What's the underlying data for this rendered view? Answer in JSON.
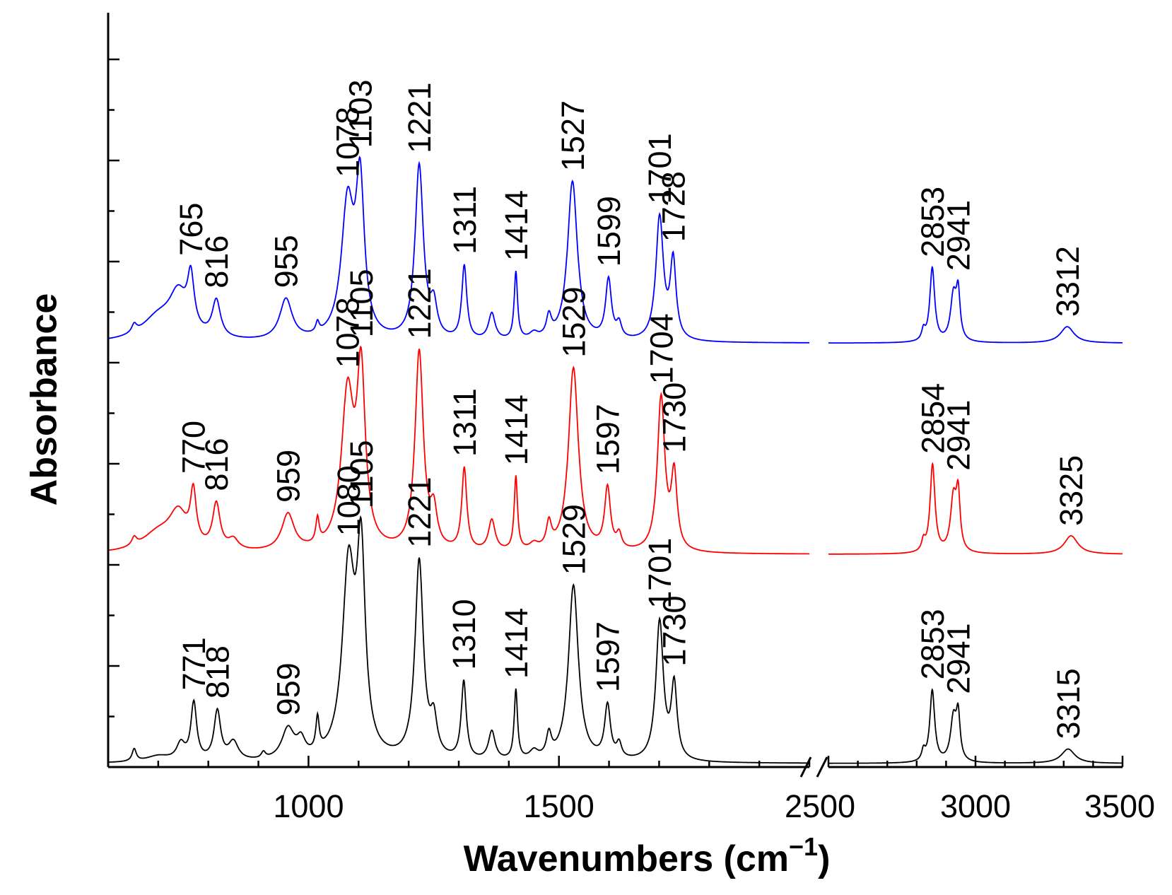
{
  "chart_data": {
    "type": "line",
    "title": "",
    "xlabel": "Wavenumbers (cm",
    "xlabel_sup": "−1",
    "xlabel_close": ")",
    "ylabel": "Absorbance",
    "x_segments": [
      {
        "range": [
          600,
          2000
        ],
        "ticks": [
          1000,
          1500
        ]
      },
      {
        "range": [
          2500,
          3500
        ],
        "ticks": [
          2500,
          3000,
          3500
        ]
      }
    ],
    "axis_break_marks": "//",
    "grid": false,
    "series": [
      {
        "color": "#0000ff",
        "offset": 2.05,
        "peaks": [
          {
            "x": 652,
            "h": 0.04,
            "w": 6
          },
          {
            "x": 700,
            "h": 0.11,
            "w": 40
          },
          {
            "x": 740,
            "h": 0.2,
            "w": 22
          },
          {
            "x": 765,
            "h": 0.25,
            "w": 8
          },
          {
            "x": 816,
            "h": 0.18,
            "w": 10
          },
          {
            "x": 955,
            "h": 0.2,
            "w": 15
          },
          {
            "x": 1018,
            "h": 0.05,
            "w": 4
          },
          {
            "x": 1078,
            "h": 0.65,
            "w": 15
          },
          {
            "x": 1103,
            "h": 0.72,
            "w": 10
          },
          {
            "x": 1221,
            "h": 0.85,
            "w": 10
          },
          {
            "x": 1250,
            "h": 0.15,
            "w": 8
          },
          {
            "x": 1311,
            "h": 0.36,
            "w": 6
          },
          {
            "x": 1366,
            "h": 0.13,
            "w": 8
          },
          {
            "x": 1414,
            "h": 0.33,
            "w": 4
          },
          {
            "x": 1450,
            "h": 0.03,
            "w": 10
          },
          {
            "x": 1480,
            "h": 0.1,
            "w": 6
          },
          {
            "x": 1527,
            "h": 0.78,
            "w": 12
          },
          {
            "x": 1599,
            "h": 0.29,
            "w": 7
          },
          {
            "x": 1620,
            "h": 0.07,
            "w": 6
          },
          {
            "x": 1701,
            "h": 0.6,
            "w": 9
          },
          {
            "x": 1728,
            "h": 0.38,
            "w": 7
          },
          {
            "x": 2823,
            "h": 0.05,
            "w": 7
          },
          {
            "x": 2853,
            "h": 0.36,
            "w": 10
          },
          {
            "x": 2925,
            "h": 0.22,
            "w": 12
          },
          {
            "x": 2941,
            "h": 0.22,
            "w": 8
          },
          {
            "x": 3312,
            "h": 0.08,
            "w": 28
          }
        ],
        "labels": [
          {
            "text": "765",
            "x": 765
          },
          {
            "text": "816",
            "x": 816
          },
          {
            "text": "955",
            "x": 955
          },
          {
            "text": "1078",
            "x": 1078
          },
          {
            "text": "1103",
            "x": 1103
          },
          {
            "text": "1221",
            "x": 1221
          },
          {
            "text": "1311",
            "x": 1311
          },
          {
            "text": "1414",
            "x": 1414
          },
          {
            "text": "1527",
            "x": 1527
          },
          {
            "text": "1599",
            "x": 1599
          },
          {
            "text": "1701",
            "x": 1701
          },
          {
            "text": "1728",
            "x": 1728
          },
          {
            "text": "2853",
            "x": 2853
          },
          {
            "text": "2941",
            "x": 2941
          },
          {
            "text": "3312",
            "x": 3312
          }
        ]
      },
      {
        "color": "#ff0000",
        "offset": 1.02,
        "peaks": [
          {
            "x": 652,
            "h": 0.04,
            "w": 6
          },
          {
            "x": 700,
            "h": 0.09,
            "w": 40
          },
          {
            "x": 740,
            "h": 0.17,
            "w": 22
          },
          {
            "x": 770,
            "h": 0.25,
            "w": 7
          },
          {
            "x": 816,
            "h": 0.22,
            "w": 9
          },
          {
            "x": 850,
            "h": 0.05,
            "w": 12
          },
          {
            "x": 959,
            "h": 0.18,
            "w": 15
          },
          {
            "x": 1018,
            "h": 0.12,
            "w": 4
          },
          {
            "x": 1078,
            "h": 0.75,
            "w": 15
          },
          {
            "x": 1105,
            "h": 0.82,
            "w": 10
          },
          {
            "x": 1221,
            "h": 0.97,
            "w": 10
          },
          {
            "x": 1250,
            "h": 0.17,
            "w": 8
          },
          {
            "x": 1311,
            "h": 0.4,
            "w": 6
          },
          {
            "x": 1366,
            "h": 0.15,
            "w": 8
          },
          {
            "x": 1414,
            "h": 0.36,
            "w": 4
          },
          {
            "x": 1450,
            "h": 0.03,
            "w": 10
          },
          {
            "x": 1480,
            "h": 0.12,
            "w": 6
          },
          {
            "x": 1529,
            "h": 0.9,
            "w": 12
          },
          {
            "x": 1597,
            "h": 0.3,
            "w": 7
          },
          {
            "x": 1620,
            "h": 0.07,
            "w": 6
          },
          {
            "x": 1704,
            "h": 0.75,
            "w": 9
          },
          {
            "x": 1730,
            "h": 0.36,
            "w": 7
          },
          {
            "x": 2823,
            "h": 0.05,
            "w": 7
          },
          {
            "x": 2854,
            "h": 0.43,
            "w": 10
          },
          {
            "x": 2925,
            "h": 0.26,
            "w": 12
          },
          {
            "x": 2941,
            "h": 0.26,
            "w": 8
          },
          {
            "x": 3325,
            "h": 0.09,
            "w": 28
          }
        ],
        "labels": [
          {
            "text": "770",
            "x": 770
          },
          {
            "text": "816",
            "x": 816
          },
          {
            "text": "959",
            "x": 959
          },
          {
            "text": "1078",
            "x": 1078
          },
          {
            "text": "1105",
            "x": 1105
          },
          {
            "text": "1221",
            "x": 1221
          },
          {
            "text": "1311",
            "x": 1311
          },
          {
            "text": "1414",
            "x": 1414
          },
          {
            "text": "1529",
            "x": 1529
          },
          {
            "text": "1597",
            "x": 1597
          },
          {
            "text": "1704",
            "x": 1704
          },
          {
            "text": "1730",
            "x": 1730
          },
          {
            "text": "2854",
            "x": 2854
          },
          {
            "text": "2941",
            "x": 2941
          },
          {
            "text": "3325",
            "x": 3325
          }
        ]
      },
      {
        "color": "#000000",
        "offset": 0.0,
        "peaks": [
          {
            "x": 652,
            "h": 0.06,
            "w": 5
          },
          {
            "x": 700,
            "h": 0.03,
            "w": 30
          },
          {
            "x": 745,
            "h": 0.08,
            "w": 10
          },
          {
            "x": 771,
            "h": 0.28,
            "w": 7
          },
          {
            "x": 818,
            "h": 0.24,
            "w": 8
          },
          {
            "x": 850,
            "h": 0.09,
            "w": 12
          },
          {
            "x": 910,
            "h": 0.03,
            "w": 5
          },
          {
            "x": 959,
            "h": 0.15,
            "w": 15
          },
          {
            "x": 985,
            "h": 0.08,
            "w": 10
          },
          {
            "x": 1018,
            "h": 0.16,
            "w": 4
          },
          {
            "x": 1080,
            "h": 0.92,
            "w": 15
          },
          {
            "x": 1105,
            "h": 0.94,
            "w": 10
          },
          {
            "x": 1221,
            "h": 0.97,
            "w": 10
          },
          {
            "x": 1250,
            "h": 0.17,
            "w": 8
          },
          {
            "x": 1310,
            "h": 0.38,
            "w": 6
          },
          {
            "x": 1366,
            "h": 0.14,
            "w": 8
          },
          {
            "x": 1414,
            "h": 0.34,
            "w": 4
          },
          {
            "x": 1450,
            "h": 0.04,
            "w": 10
          },
          {
            "x": 1480,
            "h": 0.11,
            "w": 6
          },
          {
            "x": 1529,
            "h": 0.86,
            "w": 12
          },
          {
            "x": 1597,
            "h": 0.26,
            "w": 7
          },
          {
            "x": 1620,
            "h": 0.07,
            "w": 6
          },
          {
            "x": 1701,
            "h": 0.68,
            "w": 9
          },
          {
            "x": 1730,
            "h": 0.36,
            "w": 7
          },
          {
            "x": 2823,
            "h": 0.05,
            "w": 7
          },
          {
            "x": 2853,
            "h": 0.35,
            "w": 10
          },
          {
            "x": 2925,
            "h": 0.21,
            "w": 12
          },
          {
            "x": 2941,
            "h": 0.21,
            "w": 8
          },
          {
            "x": 3315,
            "h": 0.07,
            "w": 28
          }
        ],
        "labels": [
          {
            "text": "771",
            "x": 771
          },
          {
            "text": "818",
            "x": 818
          },
          {
            "text": "959",
            "x": 959
          },
          {
            "text": "1080",
            "x": 1080
          },
          {
            "text": "1105",
            "x": 1105
          },
          {
            "text": "1221",
            "x": 1221
          },
          {
            "text": "1310",
            "x": 1310
          },
          {
            "text": "1414",
            "x": 1414
          },
          {
            "text": "1529",
            "x": 1529
          },
          {
            "text": "1597",
            "x": 1597
          },
          {
            "text": "1701",
            "x": 1701
          },
          {
            "text": "1730",
            "x": 1730
          },
          {
            "text": "2853",
            "x": 2853
          },
          {
            "text": "2941",
            "x": 2941
          },
          {
            "text": "3315",
            "x": 3315
          }
        ]
      }
    ]
  }
}
